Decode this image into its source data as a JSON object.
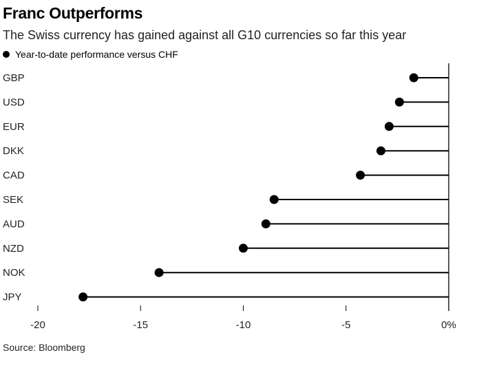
{
  "chart_data": {
    "type": "lollipop",
    "title": "Franc Outperforms",
    "subtitle": "The Swiss currency has gained against all G10 currencies so far this year",
    "legend": "Year-to-date performance versus CHF",
    "source": "Source: Bloomberg",
    "categories": [
      "GBP",
      "USD",
      "EUR",
      "DKK",
      "CAD",
      "SEK",
      "AUD",
      "NZD",
      "NOK",
      "JPY"
    ],
    "values": [
      -1.7,
      -2.4,
      -2.9,
      -3.3,
      -4.3,
      -8.5,
      -8.9,
      -10.0,
      -14.1,
      -17.8
    ],
    "xlim": [
      -20,
      0
    ],
    "xticks": [
      -20,
      -15,
      -10,
      -5,
      0
    ],
    "xtick_labels": [
      "-20",
      "-15",
      "-10",
      "-5",
      "0%"
    ],
    "legend_position": "top-left"
  }
}
